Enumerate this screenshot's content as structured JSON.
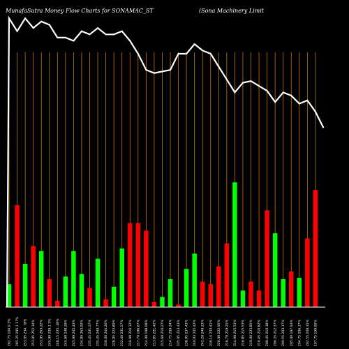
{
  "header": {
    "title_left": "MunafaSutra  Money Flow  Charts for SONAMAC_ST",
    "title_right": "(Sona  Machinery Limit"
  },
  "chart_data": {
    "type": "bar",
    "colors": {
      "up": "#00ff00",
      "down": "#ff0000",
      "price_line": "#ffffff",
      "grid": "#cc7a00",
      "background": "#000000"
    },
    "bar_unit": "relative volume (0-100)",
    "bars": [
      {
        "label": "262.75 104.0 2%",
        "value": 9,
        "color": "up"
      },
      {
        "label": "265.25 295.1 17%",
        "value": 40,
        "color": "down"
      },
      {
        "label": "253.05 234. 78%",
        "value": 17,
        "color": "up"
      },
      {
        "label": "253.05 252.14%",
        "value": 24,
        "color": "down"
      },
      {
        "label": "253.05 263.22%",
        "value": 22,
        "color": "up"
      },
      {
        "label": "245.00 239.1 1%",
        "value": 11,
        "color": "down"
      },
      {
        "label": "248.15 235. 48%",
        "value": 2.5,
        "color": "down"
      },
      {
        "label": "245.90 238.29%",
        "value": 12,
        "color": "up"
      },
      {
        "label": "245.90 245.43%",
        "value": 22,
        "color": "up"
      },
      {
        "label": "234.80 263.92%",
        "value": 13,
        "color": "up"
      },
      {
        "label": "235.45 231.37%",
        "value": 7.5,
        "color": "down"
      },
      {
        "label": "235.45 240.77%",
        "value": 19,
        "color": "up"
      },
      {
        "label": "230.00 244.20%",
        "value": 3,
        "color": "down"
      },
      {
        "label": "228.05 223.89%",
        "value": 8,
        "color": "up"
      },
      {
        "label": "232.40 231.57%",
        "value": 23,
        "color": "up"
      },
      {
        "label": "216.90 216.12%",
        "value": 33,
        "color": "down"
      },
      {
        "label": "217.70 196.67%",
        "value": 33,
        "color": "down"
      },
      {
        "label": "214.00 198.09%",
        "value": 30,
        "color": "down"
      },
      {
        "label": "213.85 221.42%",
        "value": 2,
        "color": "down"
      },
      {
        "label": "215.60 210.27%",
        "value": 4,
        "color": "up"
      },
      {
        "label": "214.75 209.24%",
        "value": 11,
        "color": "up"
      },
      {
        "label": "235.05 213.43%",
        "value": 1,
        "color": "down"
      },
      {
        "label": "238.95 237.43%",
        "value": 15,
        "color": "up"
      },
      {
        "label": "240.03 245.42%",
        "value": 21,
        "color": "up"
      },
      {
        "label": "242.20 240.23%",
        "value": 10,
        "color": "down"
      },
      {
        "label": "236.14 233.41%",
        "value": 9,
        "color": "down"
      },
      {
        "label": "220.00 222.95%",
        "value": 16,
        "color": "down"
      },
      {
        "label": "216.70 219.21%",
        "value": 25,
        "color": "down"
      },
      {
        "label": "214.90 215.53%",
        "value": 49,
        "color": "up"
      },
      {
        "label": "216.85 215.53%",
        "value": 6.5,
        "color": "up"
      },
      {
        "label": "219.00 223.85%",
        "value": 10,
        "color": "down"
      },
      {
        "label": "210.45 210.82%",
        "value": 6.5,
        "color": "down"
      },
      {
        "label": "208.45 210.18%",
        "value": 38,
        "color": "down"
      },
      {
        "label": "206.35 212.37%",
        "value": 29,
        "color": "up"
      },
      {
        "label": "209.55 203.17%",
        "value": 11,
        "color": "up"
      },
      {
        "label": "205.00 197.93%",
        "value": 14,
        "color": "down"
      },
      {
        "label": "204.75 206.37%",
        "value": 11.5,
        "color": "up"
      },
      {
        "label": "202.55 200.31%",
        "value": 27,
        "color": "down"
      },
      {
        "label": "197.75 199.95%",
        "value": 46,
        "color": "down"
      }
    ],
    "price_line": [
      280,
      276,
      280,
      277,
      279,
      278,
      274,
      274,
      273,
      276,
      275,
      277,
      275,
      275,
      276,
      273,
      269,
      264,
      263,
      263.5,
      264,
      269,
      269,
      272,
      270,
      269,
      265,
      261,
      257,
      260,
      260.5,
      259,
      257.5,
      254,
      257,
      256,
      253.5,
      254.5,
      251,
      246
    ],
    "price_range": [
      243,
      282
    ]
  }
}
